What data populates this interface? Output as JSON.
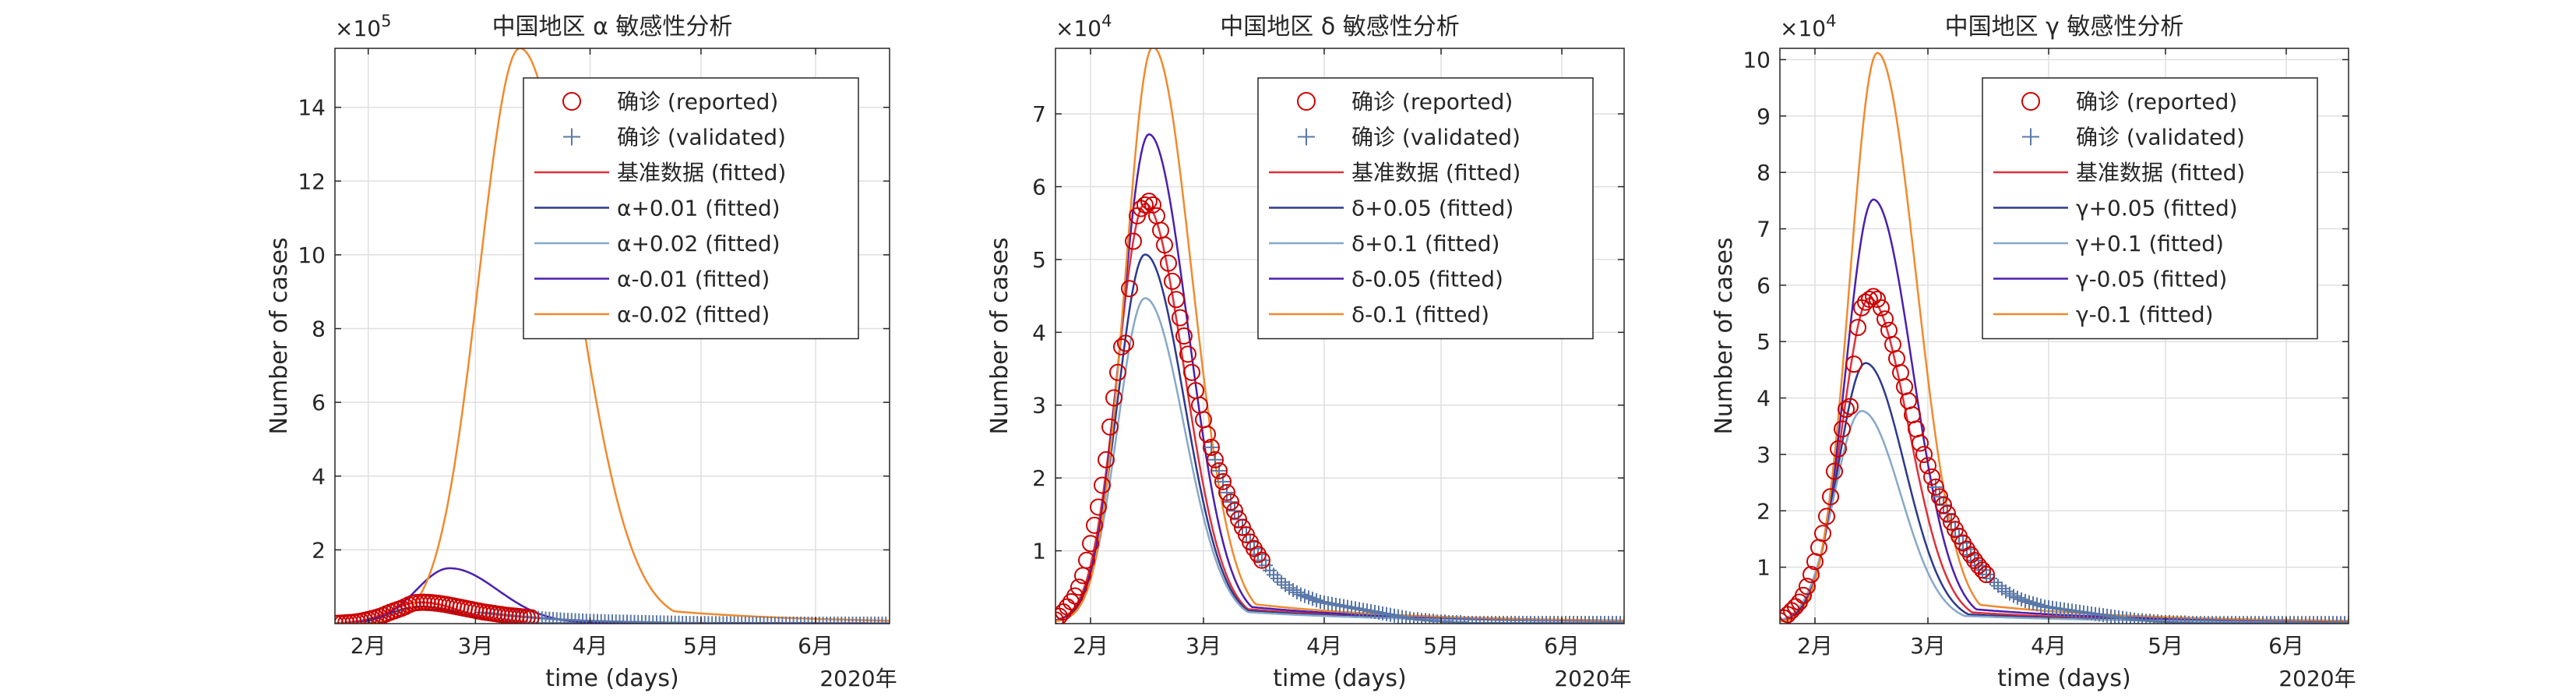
{
  "figure": {
    "background": "#ffffff",
    "axes_color": "#262626",
    "grid_color": "#dfdfdf"
  },
  "chart_data": [
    {
      "type": "line",
      "title": "中国地区 α 敏感性分析",
      "xlabel": "time (days)",
      "ylabel": "Number of cases",
      "exponent_label": "×10",
      "exponent": "5",
      "year_label": "2020年",
      "xlim": [
        0,
        150
      ],
      "ylim": [
        0,
        156
      ],
      "grid": true,
      "legend_position": "top-right",
      "x_ticks": [
        {
          "x": 9,
          "label": "2月"
        },
        {
          "x": 38,
          "label": "3月"
        },
        {
          "x": 69,
          "label": "4月"
        },
        {
          "x": 99,
          "label": "5月"
        },
        {
          "x": 130,
          "label": "6月"
        }
      ],
      "y_ticks": [
        {
          "y": 2,
          "label": "2"
        },
        {
          "y": 4,
          "label": "4"
        },
        {
          "y": 6,
          "label": "6"
        },
        {
          "y": 8,
          "label": "8"
        },
        {
          "y": 10,
          "label": "10"
        },
        {
          "y": 12,
          "label": "12"
        },
        {
          "y": 14,
          "label": "14"
        }
      ],
      "y_scale": 10,
      "reported": {
        "name": "确诊 (reported)",
        "color": "#cc0000",
        "x": [
          0,
          1,
          2,
          3,
          4,
          5,
          6,
          7,
          8,
          9,
          10,
          11,
          12,
          13,
          14,
          15,
          16,
          17,
          18,
          19,
          20,
          21,
          22,
          23,
          24,
          25,
          26,
          27,
          28,
          29,
          30,
          31,
          32,
          33,
          34,
          35,
          36,
          37,
          38,
          39,
          40,
          41,
          42,
          43,
          44,
          45,
          46,
          47,
          48,
          49,
          50,
          51,
          52,
          53
        ],
        "y": [
          0.05,
          0.1,
          0.16,
          0.23,
          0.3,
          0.38,
          0.5,
          0.66,
          0.87,
          1.1,
          1.35,
          1.6,
          1.9,
          2.25,
          2.7,
          3.1,
          3.45,
          3.8,
          4.15,
          4.6,
          5.1,
          5.5,
          5.7,
          5.75,
          5.8,
          5.75,
          5.7,
          5.6,
          5.5,
          5.35,
          5.2,
          5.0,
          4.8,
          4.6,
          4.4,
          4.2,
          4.0,
          3.8,
          3.6,
          3.4,
          3.2,
          3.05,
          2.9,
          2.75,
          2.6,
          2.45,
          2.3,
          2.2,
          2.1,
          2.0,
          1.9,
          1.8,
          1.7,
          1.6
        ]
      },
      "validated": {
        "name": "确诊 (validated)",
        "color": "#5a78a8",
        "x_start": 40,
        "x_end": 149,
        "step": 1,
        "y": [
          3.0,
          2.88,
          2.76,
          2.64,
          2.52,
          2.4,
          2.3,
          2.2,
          2.1,
          2.0,
          1.92,
          1.84,
          1.76,
          1.68,
          1.6,
          1.52,
          1.45,
          1.38,
          1.31,
          1.25,
          1.19,
          1.13,
          1.07,
          1.02,
          0.97,
          0.92,
          0.88,
          0.84,
          0.8,
          0.77,
          0.74,
          0.71,
          0.68,
          0.65,
          0.62,
          0.6,
          0.58,
          0.56,
          0.54,
          0.52,
          0.5,
          0.48,
          0.46,
          0.44,
          0.42,
          0.4,
          0.38,
          0.36,
          0.34,
          0.32,
          0.3,
          0.28,
          0.26,
          0.24,
          0.22,
          0.2,
          0.19,
          0.18,
          0.17,
          0.16,
          0.15,
          0.14,
          0.13,
          0.12,
          0.11,
          0.1,
          0.09,
          0.08,
          0.07,
          0.06,
          0.05,
          0.05,
          0.04,
          0.04,
          0.03,
          0.03,
          0.02,
          0.02,
          0.02,
          0.01,
          0.01,
          0.01,
          0.01,
          0.01,
          0.01,
          0.01,
          0.01,
          0.01,
          0.01,
          0.01,
          0.01,
          0.01,
          0.01,
          0.01,
          0.01,
          0.01,
          0.01,
          0.01,
          0.01,
          0.01,
          0.01,
          0.01,
          0.01,
          0.01,
          0.01,
          0.01,
          0.01,
          0.01,
          0.01,
          0.01
        ]
      },
      "series": [
        {
          "name": "基准数据 (fitted)",
          "color": "#e0303a",
          "peak": 5.75,
          "t_peak": 23,
          "rise": 8,
          "decay": 11,
          "base": 0.02
        },
        {
          "name": "α+0.01 (fitted)",
          "color": "#2b3a8c",
          "peak": 4.6,
          "t_peak": 23,
          "rise": 8,
          "decay": 11,
          "base": 0.02
        },
        {
          "name": "α+0.02 (fitted)",
          "color": "#86a8c8",
          "peak": 3.7,
          "t_peak": 23,
          "rise": 8,
          "decay": 11,
          "base": 0.02
        },
        {
          "name": "α-0.01 (fitted)",
          "color": "#4a1fb0",
          "peak": 15.0,
          "t_peak": 31,
          "rise": 9,
          "decay": 13,
          "base": 0.02
        },
        {
          "name": "α-0.02 (fitted)",
          "color": "#f08a2e",
          "peak": 156,
          "t_peak": 50,
          "rise": 11,
          "decay": 15,
          "base": 0.02
        }
      ]
    },
    {
      "type": "line",
      "title": "中国地区 δ 敏感性分析",
      "xlabel": "time (days)",
      "ylabel": "Number of cases",
      "exponent_label": "×10",
      "exponent": "4",
      "year_label": "2020年",
      "xlim": [
        0,
        146
      ],
      "ylim": [
        0,
        7.9
      ],
      "grid": true,
      "legend_position": "top-right",
      "x_ticks": [
        {
          "x": 9,
          "label": "2月"
        },
        {
          "x": 38,
          "label": "3月"
        },
        {
          "x": 69,
          "label": "4月"
        },
        {
          "x": 99,
          "label": "5月"
        },
        {
          "x": 130,
          "label": "6月"
        }
      ],
      "y_ticks": [
        {
          "y": 1,
          "label": "1"
        },
        {
          "y": 2,
          "label": "2"
        },
        {
          "y": 3,
          "label": "3"
        },
        {
          "y": 4,
          "label": "4"
        },
        {
          "y": 5,
          "label": "5"
        },
        {
          "y": 6,
          "label": "6"
        },
        {
          "y": 7,
          "label": "7"
        }
      ],
      "y_scale": 1,
      "reported": {
        "name": "确诊 (reported)",
        "color": "#cc0000",
        "x": [
          0,
          1,
          2,
          3,
          4,
          5,
          6,
          7,
          8,
          9,
          10,
          11,
          12,
          13,
          14,
          15,
          16,
          17,
          18,
          19,
          20,
          21,
          22,
          23,
          24,
          25,
          26,
          27,
          28,
          29,
          30,
          31,
          32,
          33,
          34,
          35,
          36,
          37,
          38,
          39,
          40,
          41,
          42,
          43,
          44,
          45,
          46,
          47,
          48,
          49,
          50,
          51,
          52,
          53
        ],
        "y": [
          0.05,
          0.1,
          0.16,
          0.23,
          0.3,
          0.38,
          0.5,
          0.66,
          0.87,
          1.1,
          1.35,
          1.6,
          1.9,
          2.25,
          2.7,
          3.1,
          3.45,
          3.8,
          3.85,
          4.6,
          5.25,
          5.6,
          5.7,
          5.75,
          5.8,
          5.75,
          5.6,
          5.4,
          5.2,
          4.95,
          4.7,
          4.45,
          4.2,
          3.95,
          3.7,
          3.45,
          3.2,
          3.0,
          2.8,
          2.6,
          2.42,
          2.25,
          2.1,
          1.95,
          1.8,
          1.67,
          1.55,
          1.43,
          1.32,
          1.22,
          1.12,
          1.03,
          0.95,
          0.87
        ]
      },
      "validated": {
        "name": "确诊 (validated)",
        "color": "#5a78a8",
        "x_start": 40,
        "x_end": 146,
        "step": 1,
        "y": [
          2.42,
          2.25,
          2.1,
          1.95,
          1.8,
          1.67,
          1.55,
          1.43,
          1.32,
          1.22,
          1.12,
          1.03,
          0.95,
          0.87,
          0.8,
          0.73,
          0.67,
          0.62,
          0.57,
          0.53,
          0.49,
          0.46,
          0.43,
          0.4,
          0.38,
          0.36,
          0.34,
          0.32,
          0.3,
          0.29,
          0.28,
          0.27,
          0.26,
          0.25,
          0.24,
          0.23,
          0.22,
          0.21,
          0.2,
          0.19,
          0.18,
          0.17,
          0.16,
          0.15,
          0.14,
          0.13,
          0.12,
          0.11,
          0.1,
          0.09,
          0.08,
          0.07,
          0.06,
          0.06,
          0.05,
          0.05,
          0.04,
          0.04,
          0.03,
          0.03,
          0.03,
          0.02,
          0.02,
          0.02,
          0.02,
          0.01,
          0.01,
          0.01,
          0.01,
          0.01,
          0.01,
          0.01,
          0.01,
          0.01,
          0.01,
          0.01,
          0.01,
          0.01,
          0.01,
          0.01,
          0.01,
          0.01,
          0.01,
          0.01,
          0.01,
          0.01,
          0.01,
          0.01,
          0.01,
          0.01,
          0.01,
          0.01,
          0.01,
          0.01,
          0.01,
          0.01,
          0.01,
          0.01,
          0.01,
          0.01,
          0.01,
          0.01,
          0.01,
          0.01,
          0.01,
          0.01,
          0.01
        ]
      },
      "series": [
        {
          "name": "基准数据 (fitted)",
          "color": "#e0303a",
          "peak": 5.75,
          "t_peak": 23,
          "rise": 7,
          "decay": 10,
          "base": 0.02
        },
        {
          "name": "δ+0.05 (fitted)",
          "color": "#2b3a8c",
          "peak": 5.05,
          "t_peak": 23,
          "rise": 7,
          "decay": 10,
          "base": 0.02
        },
        {
          "name": "δ+0.1 (fitted)",
          "color": "#86a8c8",
          "peak": 4.45,
          "t_peak": 23,
          "rise": 7,
          "decay": 10,
          "base": 0.02
        },
        {
          "name": "δ-0.05 (fitted)",
          "color": "#4a1fb0",
          "peak": 6.7,
          "t_peak": 24,
          "rise": 7,
          "decay": 10,
          "base": 0.02
        },
        {
          "name": "δ-0.1 (fitted)",
          "color": "#f08a2e",
          "peak": 7.9,
          "t_peak": 25,
          "rise": 7,
          "decay": 10,
          "base": 0.02
        }
      ]
    },
    {
      "type": "line",
      "title": "中国地区 γ 敏感性分析",
      "xlabel": "time (days)",
      "ylabel": "Number of cases",
      "exponent_label": "×10",
      "exponent": "4",
      "year_label": "2020年",
      "xlim": [
        0,
        146
      ],
      "ylim": [
        0,
        10.2
      ],
      "grid": true,
      "legend_position": "top-right",
      "x_ticks": [
        {
          "x": 9,
          "label": "2月"
        },
        {
          "x": 38,
          "label": "3月"
        },
        {
          "x": 69,
          "label": "4月"
        },
        {
          "x": 99,
          "label": "5月"
        },
        {
          "x": 130,
          "label": "6月"
        }
      ],
      "y_ticks": [
        {
          "y": 1,
          "label": "1"
        },
        {
          "y": 2,
          "label": "2"
        },
        {
          "y": 3,
          "label": "3"
        },
        {
          "y": 4,
          "label": "4"
        },
        {
          "y": 5,
          "label": "5"
        },
        {
          "y": 6,
          "label": "6"
        },
        {
          "y": 7,
          "label": "7"
        },
        {
          "y": 8,
          "label": "8"
        },
        {
          "y": 9,
          "label": "9"
        },
        {
          "y": 10,
          "label": "10"
        }
      ],
      "y_scale": 1,
      "reported": {
        "name": "确诊 (reported)",
        "color": "#cc0000",
        "x": [
          0,
          1,
          2,
          3,
          4,
          5,
          6,
          7,
          8,
          9,
          10,
          11,
          12,
          13,
          14,
          15,
          16,
          17,
          18,
          19,
          20,
          21,
          22,
          23,
          24,
          25,
          26,
          27,
          28,
          29,
          30,
          31,
          32,
          33,
          34,
          35,
          36,
          37,
          38,
          39,
          40,
          41,
          42,
          43,
          44,
          45,
          46,
          47,
          48,
          49,
          50,
          51,
          52,
          53
        ],
        "y": [
          0.05,
          0.1,
          0.16,
          0.23,
          0.3,
          0.38,
          0.5,
          0.66,
          0.87,
          1.1,
          1.35,
          1.6,
          1.9,
          2.25,
          2.7,
          3.1,
          3.45,
          3.8,
          3.85,
          4.6,
          5.25,
          5.6,
          5.7,
          5.75,
          5.8,
          5.75,
          5.6,
          5.4,
          5.2,
          4.95,
          4.7,
          4.45,
          4.2,
          3.95,
          3.7,
          3.45,
          3.2,
          3.0,
          2.8,
          2.6,
          2.42,
          2.25,
          2.1,
          1.95,
          1.8,
          1.67,
          1.55,
          1.43,
          1.32,
          1.22,
          1.12,
          1.03,
          0.95,
          0.87
        ]
      },
      "validated": {
        "name": "确诊 (validated)",
        "color": "#5a78a8",
        "x_start": 40,
        "x_end": 146,
        "step": 1,
        "y": [
          2.42,
          2.25,
          2.1,
          1.95,
          1.8,
          1.67,
          1.55,
          1.43,
          1.32,
          1.22,
          1.12,
          1.03,
          0.95,
          0.87,
          0.8,
          0.73,
          0.67,
          0.62,
          0.57,
          0.53,
          0.49,
          0.46,
          0.43,
          0.4,
          0.38,
          0.36,
          0.34,
          0.32,
          0.3,
          0.29,
          0.28,
          0.27,
          0.26,
          0.25,
          0.24,
          0.23,
          0.22,
          0.21,
          0.2,
          0.19,
          0.18,
          0.17,
          0.16,
          0.15,
          0.14,
          0.13,
          0.12,
          0.11,
          0.1,
          0.09,
          0.08,
          0.07,
          0.06,
          0.06,
          0.05,
          0.05,
          0.04,
          0.04,
          0.03,
          0.03,
          0.03,
          0.02,
          0.02,
          0.02,
          0.02,
          0.01,
          0.01,
          0.01,
          0.01,
          0.01,
          0.01,
          0.01,
          0.01,
          0.01,
          0.01,
          0.01,
          0.01,
          0.01,
          0.01,
          0.01,
          0.01,
          0.01,
          0.01,
          0.01,
          0.01,
          0.01,
          0.01,
          0.01,
          0.01,
          0.01,
          0.01,
          0.01,
          0.01,
          0.01,
          0.01,
          0.01,
          0.01,
          0.01,
          0.01,
          0.01,
          0.01,
          0.01,
          0.01,
          0.01,
          0.01,
          0.01,
          0.01
        ]
      },
      "series": [
        {
          "name": "基准数据 (fitted)",
          "color": "#e0303a",
          "peak": 5.75,
          "t_peak": 23,
          "rise": 7,
          "decay": 10,
          "base": 0.02
        },
        {
          "name": "γ+0.05 (fitted)",
          "color": "#2b3a8c",
          "peak": 4.6,
          "t_peak": 22,
          "rise": 7,
          "decay": 10,
          "base": 0.02
        },
        {
          "name": "γ+0.1 (fitted)",
          "color": "#86a8c8",
          "peak": 3.75,
          "t_peak": 21,
          "rise": 7,
          "decay": 10,
          "base": 0.02
        },
        {
          "name": "γ-0.05 (fitted)",
          "color": "#4a1fb0",
          "peak": 7.5,
          "t_peak": 24,
          "rise": 7,
          "decay": 10,
          "base": 0.02
        },
        {
          "name": "γ-0.1 (fitted)",
          "color": "#f08a2e",
          "peak": 10.1,
          "t_peak": 25,
          "rise": 7,
          "decay": 10,
          "base": 0.02
        }
      ]
    }
  ]
}
